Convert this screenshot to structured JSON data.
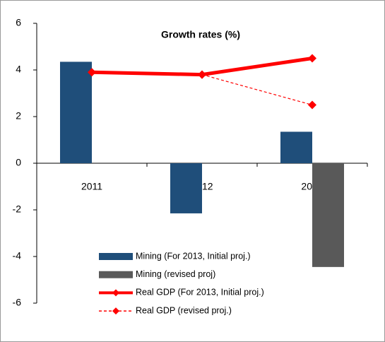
{
  "chart_data": {
    "type": "bar",
    "title": "Growth rates (%)",
    "categories": [
      "2011",
      "2012",
      "2013"
    ],
    "series": [
      {
        "name": "Mining (For 2013, Initial proj.)",
        "type": "bar",
        "color": "#1f4e7a",
        "values": [
          4.35,
          -2.15,
          1.35
        ]
      },
      {
        "name": "Mining (revised proj)",
        "type": "bar",
        "color": "#595959",
        "values": [
          null,
          null,
          -4.45
        ]
      },
      {
        "name": "Real GDP (For 2013, Initial proj.)",
        "type": "line",
        "color": "#ff0000",
        "dashed": false,
        "values": [
          3.9,
          3.8,
          4.5
        ]
      },
      {
        "name": "Real GDP (revised proj.)",
        "type": "line",
        "color": "#ff0000",
        "dashed": true,
        "values": [
          null,
          3.8,
          2.5
        ]
      }
    ],
    "ylim": [
      -6,
      6
    ],
    "yticks": [
      -6,
      -4,
      -2,
      0,
      2,
      4,
      6
    ],
    "grid": false
  }
}
